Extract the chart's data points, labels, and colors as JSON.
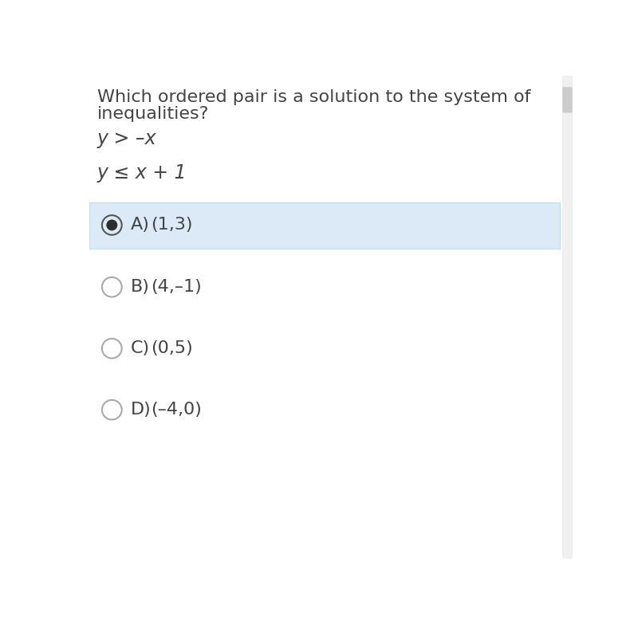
{
  "title_line1": "Which ordered pair is a solution to the system of",
  "title_line2": "inequalities?",
  "ineq1": "y > –x",
  "ineq2": "y ≤ x + 1",
  "options": [
    {
      "label": "A)",
      "text": "(1,3)",
      "selected": true
    },
    {
      "label": "B)",
      "text": "(4,–1)",
      "selected": false
    },
    {
      "label": "C)",
      "text": "(0,5)",
      "selected": false
    },
    {
      "label": "D)",
      "text": "(–4,0)",
      "selected": false
    }
  ],
  "bg_color": "#ffffff",
  "selected_bg": "#dce9f7",
  "selected_bg_border": "#c8dcef",
  "text_color": "#444444",
  "radio_outer_color": "#aaaaaa",
  "radio_inner_color": "#2d2d2d",
  "title_fontsize": 16,
  "ineq_fontsize": 17,
  "option_fontsize": 16,
  "scrollbar_color": "#cccccc"
}
